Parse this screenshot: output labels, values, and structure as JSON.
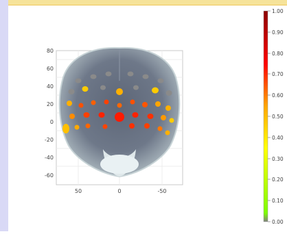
{
  "figure": {
    "description_free": true,
    "y_ticks": [
      "80",
      "60",
      "40",
      "20",
      "0",
      "-20",
      "-40",
      "-60"
    ],
    "x_ticks": [
      "50",
      "0",
      "-50"
    ]
  },
  "colorbar": {
    "ticks": [
      "1.00",
      "0.90",
      "0.80",
      "0.70",
      "0.60",
      "0.50",
      "0.40",
      "0.30",
      "0.20",
      "0.10",
      "0.00"
    ],
    "colors": [
      "#8b0000",
      "#ff0000",
      "#ffa500",
      "#ffff00",
      "#7cfc00",
      "#808080"
    ]
  },
  "electrodes": [
    {
      "row": 1,
      "values": [
        0.0,
        0.0,
        0.0,
        0.0,
        0.0,
        0.0
      ]
    },
    {
      "row": 2,
      "values": [
        0.0,
        0.5,
        0.0,
        0.55,
        0.0,
        0.5,
        0.0
      ]
    },
    {
      "row": 3,
      "values": [
        0.45,
        0.62,
        0.6,
        0.65,
        0.58,
        0.6,
        0.5,
        0.45
      ]
    },
    {
      "row": 4,
      "values": [
        0.5,
        0.58,
        0.7,
        0.82,
        0.7,
        0.65,
        0.5
      ]
    },
    {
      "row": 5,
      "values": [
        0.4,
        0.62,
        0.66,
        0.7,
        0.66,
        0.6,
        0.5,
        0.45
      ]
    }
  ]
}
